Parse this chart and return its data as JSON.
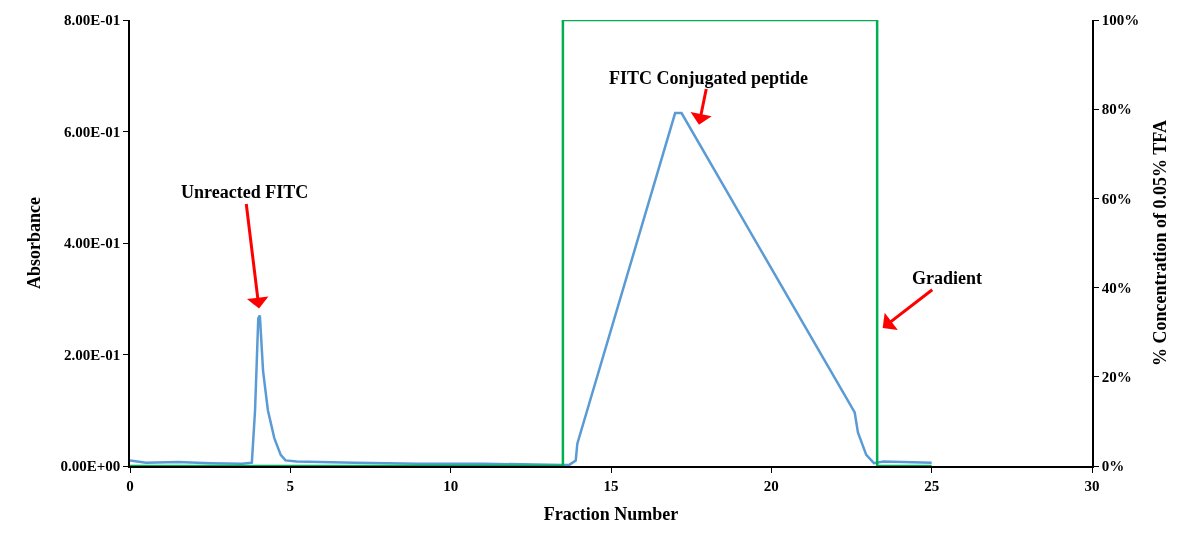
{
  "chart_data": {
    "type": "line",
    "xlabel": "Fraction Number",
    "ylabel": "Absorbance",
    "y2label": "% Concentration of 0.05% TFA",
    "xlim": [
      0,
      30
    ],
    "xticks": [
      0,
      5,
      10,
      15,
      20,
      25,
      30
    ],
    "ylim": [
      0,
      0.8
    ],
    "yticks": [
      {
        "value": 0,
        "label": "0.00E+00"
      },
      {
        "value": 0.2,
        "label": "2.00E-01"
      },
      {
        "value": 0.4,
        "label": "4.00E-01"
      },
      {
        "value": 0.6,
        "label": "6.00E-01"
      },
      {
        "value": 0.8,
        "label": "8.00E-01"
      }
    ],
    "y2lim": [
      0,
      100
    ],
    "y2ticks": [
      {
        "value": 0,
        "label": "0%"
      },
      {
        "value": 20,
        "label": "20%"
      },
      {
        "value": 40,
        "label": "40%"
      },
      {
        "value": 60,
        "label": "60%"
      },
      {
        "value": 80,
        "label": "80%"
      },
      {
        "value": 100,
        "label": "100%"
      }
    ],
    "marker": "none",
    "line_style": "solid",
    "series": [
      {
        "color": "#5b9bd5",
        "x": [
          0,
          0.5,
          1.5,
          2.5,
          3.5,
          3.8,
          3.9,
          4.0,
          4.05,
          4.15,
          4.3,
          4.5,
          4.7,
          4.85,
          5.2,
          7,
          9,
          11,
          13.5,
          13.7,
          13.9,
          13.95,
          17.0,
          17.2,
          22.6,
          22.7,
          22.96,
          23.2,
          23.5,
          25
        ],
        "values": [
          0.01,
          0.006,
          0.007,
          0.005,
          0.004,
          0.006,
          0.1,
          0.265,
          0.27,
          0.17,
          0.1,
          0.05,
          0.02,
          0.01,
          0.008,
          0.006,
          0.004,
          0.004,
          0.002,
          0.002,
          0.01,
          0.04,
          0.633,
          0.633,
          0.096,
          0.06,
          0.02,
          0.005,
          0.008,
          0.006
        ]
      },
      {
        "color": "#00b050",
        "axis": "y2",
        "x": [
          0,
          13.5,
          13.5,
          23.3,
          23.3,
          25
        ],
        "values": [
          0,
          0,
          100,
          100,
          0,
          0
        ]
      }
    ],
    "annotations": [
      {
        "text": "Unreacted FITC",
        "x": 4.05,
        "y": 0.27
      },
      {
        "text": "FITC Conjugated peptide",
        "x": 17.7,
        "y": 0.6
      },
      {
        "text": "Gradient",
        "x": 23.3,
        "y": 0.24
      }
    ]
  }
}
